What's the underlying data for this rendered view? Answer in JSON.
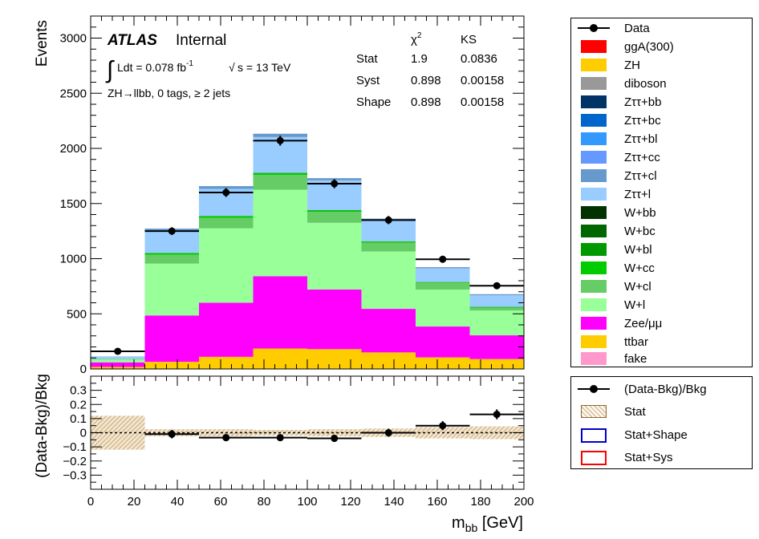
{
  "chart_data": [
    {
      "type": "bar",
      "stacked": true,
      "bin_edges": [
        0,
        25,
        50,
        75,
        100,
        125,
        150,
        175,
        200
      ],
      "x": [
        12.5,
        37.5,
        62.5,
        87.5,
        112.5,
        137.5,
        162.5,
        187.5
      ],
      "ylabel": "Events",
      "ylim": [
        0,
        3200
      ],
      "yticks": [
        0,
        500,
        1000,
        1500,
        2000,
        2500,
        3000
      ],
      "stack_order": [
        "ttbar",
        "Zee/μμ",
        "W+l",
        "W+cl",
        "W+cc",
        "W+bl",
        "Zττ+l",
        "Zττ+cl"
      ],
      "series": [
        {
          "name": "ttbar",
          "color": "#ffcc00",
          "values": [
            18,
            65,
            110,
            185,
            180,
            150,
            105,
            90
          ]
        },
        {
          "name": "Zee/μμ",
          "color": "#ff00ff",
          "values": [
            42,
            420,
            490,
            655,
            540,
            395,
            280,
            215
          ]
        },
        {
          "name": "W+l",
          "color": "#99ff99",
          "values": [
            25,
            470,
            675,
            785,
            605,
            520,
            335,
            225
          ]
        },
        {
          "name": "W+cl",
          "color": "#66cc66",
          "values": [
            3,
            80,
            95,
            135,
            100,
            80,
            60,
            25
          ]
        },
        {
          "name": "W+cc",
          "color": "#00cc00",
          "values": [
            2,
            15,
            15,
            15,
            12,
            10,
            5,
            5
          ]
        },
        {
          "name": "W+bl",
          "color": "#009900",
          "values": [
            0,
            3,
            3,
            3,
            3,
            3,
            3,
            3
          ]
        },
        {
          "name": "Zττ+l",
          "color": "#99ccff",
          "values": [
            20,
            195,
            245,
            325,
            270,
            190,
            125,
            105
          ]
        },
        {
          "name": "Zττ+cl",
          "color": "#6699cc",
          "values": [
            3,
            25,
            25,
            30,
            20,
            15,
            10,
            10
          ]
        }
      ],
      "data": {
        "name": "Data",
        "values": [
          160,
          1250,
          1600,
          2070,
          1680,
          1350,
          995,
          755
        ],
        "errors": [
          13,
          35,
          40,
          45,
          41,
          37,
          32,
          27
        ]
      },
      "legend": [
        "Data",
        "ggA(300)",
        "ZH",
        "diboson",
        "Zττ+bb",
        "Zττ+bc",
        "Zττ+bl",
        "Zττ+cc",
        "Zττ+cl",
        "Zττ+l",
        "W+bb",
        "W+bc",
        "W+bl",
        "W+cc",
        "W+cl",
        "W+l",
        "Zee/μμ",
        "ttbar",
        "fake"
      ],
      "legend_colors": [
        "#000000",
        "#ff0000",
        "#ffcc00",
        "#999999",
        "#003366",
        "#0066cc",
        "#3399ff",
        "#6699ff",
        "#6699cc",
        "#99ccff",
        "#003300",
        "#006600",
        "#009900",
        "#00cc00",
        "#66cc66",
        "#99ff99",
        "#ff00ff",
        "#ffcc00",
        "#ff99cc"
      ],
      "legend_placement": "right-outside",
      "atlas_label": "ATLAS",
      "atlas_status": "Internal",
      "lumi_prefix": "Ldt = 0.078 fb",
      "lumi_exp": "-1",
      "energy": "s = 13 TeV",
      "region": "ZH→llbb, 0 tags, ≥ 2 jets",
      "stats_table": {
        "headers": [
          "χ",
          "KS"
        ],
        "chi_exp": "2",
        "rows": [
          {
            "label": "Stat",
            "chi2": "1.9",
            "ks": "0.0836"
          },
          {
            "label": "Syst",
            "chi2": "0.898",
            "ks": "0.00158"
          },
          {
            "label": "Shape",
            "chi2": "0.898",
            "ks": "0.00158"
          }
        ]
      }
    },
    {
      "type": "scatter",
      "x": [
        12.5,
        37.5,
        62.5,
        87.5,
        112.5,
        137.5,
        162.5,
        187.5
      ],
      "values": [
        null,
        -0.01,
        -0.035,
        -0.035,
        -0.04,
        0.0,
        0.05,
        0.13
      ],
      "errors": [
        null,
        0.03,
        0.025,
        0.02,
        0.025,
        0.028,
        0.032,
        0.035
      ],
      "stat_band": [
        0.12,
        0.025,
        0.025,
        0.02,
        0.025,
        0.03,
        0.04,
        0.045
      ],
      "xlabel": "m",
      "xlabel_sub": "bb",
      "xlabel_unit": " [GeV]",
      "ylabel": "(Data-Bkg)/Bkg",
      "xlim": [
        0,
        200
      ],
      "ylim": [
        -0.4,
        0.4
      ],
      "xticks": [
        0,
        20,
        40,
        60,
        80,
        100,
        120,
        140,
        160,
        180,
        200
      ],
      "yticks": [
        -0.3,
        -0.2,
        -0.1,
        0,
        0.1,
        0.2,
        0.3
      ],
      "yticklabels": [
        "−0.3",
        "−0.2",
        "−0.1",
        "0",
        "0.1",
        "0.2",
        "0.3"
      ],
      "legend": [
        "(Data-Bkg)/Bkg",
        "Stat",
        "Stat+Shape",
        "Stat+Sys"
      ],
      "legend_colors": [
        "#000000",
        "#e2c9a3",
        "#0000cc",
        "#ff0000"
      ]
    }
  ]
}
